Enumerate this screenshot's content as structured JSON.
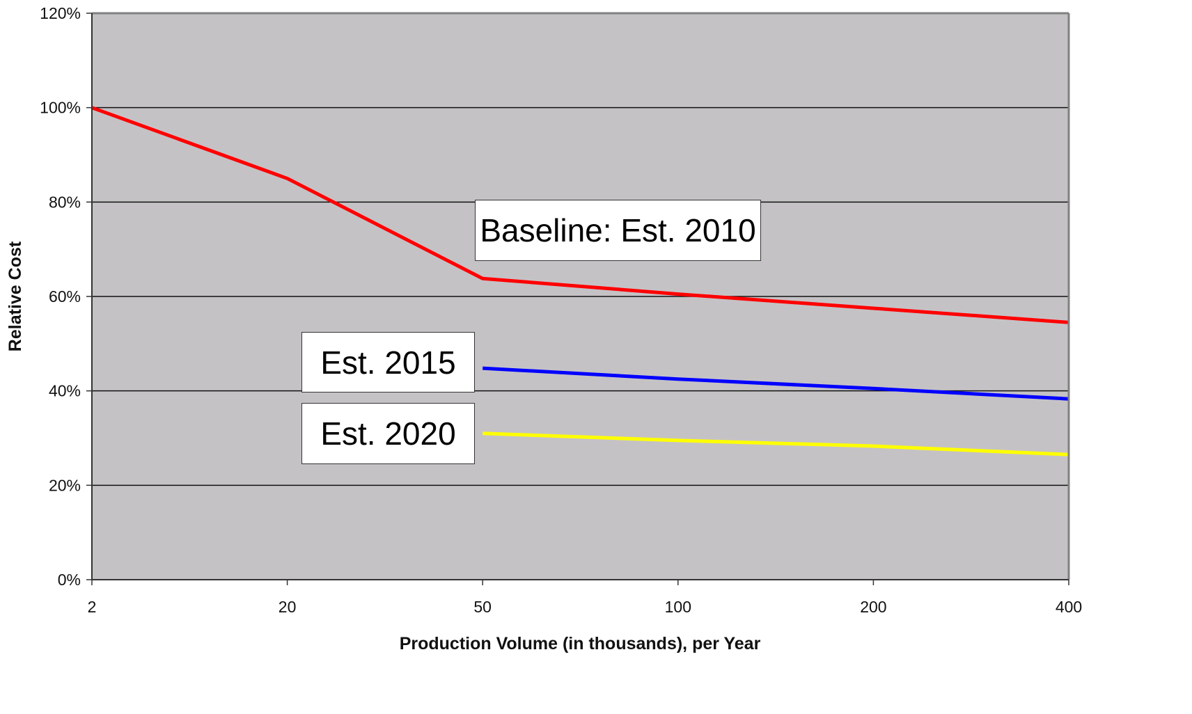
{
  "chart_data": {
    "type": "line",
    "x_scale": "categorical-log",
    "x_categories": [
      "2",
      "20",
      "50",
      "100",
      "200",
      "400"
    ],
    "xlabel": "Production Volume (in thousands), per Year",
    "ylabel": "Relative Cost",
    "ylim": [
      0,
      120
    ],
    "y_ticks": [
      "0%",
      "20%",
      "40%",
      "60%",
      "80%",
      "100%",
      "120%"
    ],
    "y_unit": "%",
    "grid": "horizontal",
    "plot_background": "#c5c2c6",
    "series": [
      {
        "color": "#ff0000",
        "x": [
          "2",
          "20",
          "50",
          "100",
          "200",
          "400"
        ],
        "values": [
          100,
          85,
          63.8,
          60.5,
          57.5,
          54.5
        ]
      },
      {
        "color": "#0000ff",
        "x": [
          "50",
          "100",
          "200",
          "400"
        ],
        "values": [
          44.8,
          42.5,
          40.5,
          38.3
        ]
      },
      {
        "color": "#ffff00",
        "x": [
          "50",
          "100",
          "200",
          "400"
        ],
        "values": [
          31,
          29.5,
          28.3,
          26.5
        ]
      }
    ],
    "annotations": [
      {
        "text": "Baseline: Est. 2010"
      },
      {
        "text": "Est. 2015"
      },
      {
        "text": "Est. 2020"
      }
    ]
  }
}
